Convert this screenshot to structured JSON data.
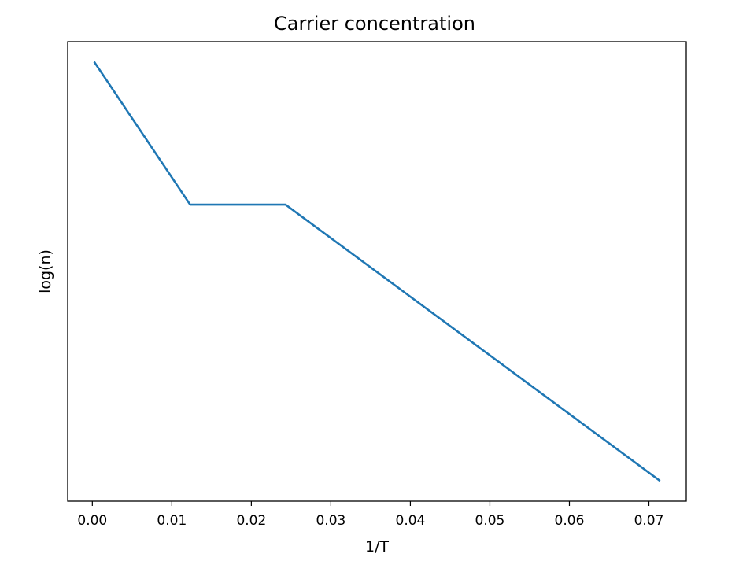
{
  "chart_data": {
    "type": "line",
    "title": "Carrier concentration",
    "xlabel": "1/T",
    "ylabel": "log(n)",
    "xlim": [
      -0.0031,
      0.0747
    ],
    "ylim": [
      0,
      1.1
    ],
    "x_ticks": [
      "0.00",
      "0.01",
      "0.02",
      "0.03",
      "0.04",
      "0.05",
      "0.06",
      "0.07"
    ],
    "x_tick_values": [
      0,
      0.01,
      0.02,
      0.03,
      0.04,
      0.05,
      0.06,
      0.07
    ],
    "y_ticks": [],
    "grid": false,
    "series": [
      {
        "color": "#1f77b4",
        "x": [
          0.0003,
          0.0123,
          0.0243,
          0.0713
        ],
        "y": [
          1.05,
          0.71,
          0.71,
          0.05
        ]
      }
    ]
  }
}
